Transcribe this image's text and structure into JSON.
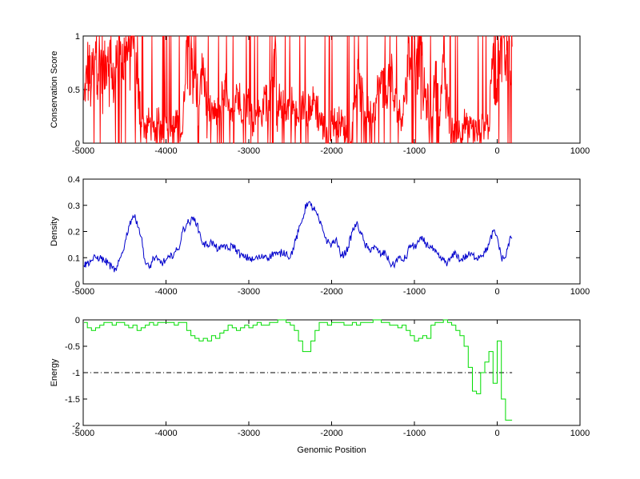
{
  "chart_data": [
    {
      "type": "line",
      "ylabel": "Conservation Score",
      "xlim": [
        -5000,
        1000
      ],
      "ylim": [
        0,
        1
      ],
      "xticks": [
        -5000,
        -4000,
        -3000,
        -2000,
        -1000,
        0,
        1000
      ],
      "xtick_labels": [
        "-5000",
        "-4000",
        "-3000",
        "-2000",
        "-1000",
        "0",
        "1000"
      ],
      "yticks": [
        0,
        0.5,
        1
      ],
      "ytick_labels": [
        "0",
        "0.5",
        "1"
      ],
      "color": "#ff0000",
      "noisy": true,
      "x": [
        -4990,
        -4950,
        -4900,
        -4850,
        -4800,
        -4750,
        -4700,
        -4650,
        -4600,
        -4550,
        -4500,
        -4450,
        -4400,
        -4350,
        -4300,
        -4250,
        -4200,
        -4150,
        -4100,
        -4050,
        -4000,
        -3950,
        -3900,
        -3850,
        -3800,
        -3750,
        -3700,
        -3650,
        -3600,
        -3550,
        -3500,
        -3450,
        -3400,
        -3350,
        -3300,
        -3250,
        -3200,
        -3150,
        -3100,
        -3050,
        -3000,
        -2950,
        -2900,
        -2850,
        -2800,
        -2750,
        -2700,
        -2650,
        -2600,
        -2550,
        -2500,
        -2450,
        -2400,
        -2350,
        -2300,
        -2250,
        -2200,
        -2150,
        -2100,
        -2050,
        -2000,
        -1950,
        -1900,
        -1850,
        -1800,
        -1750,
        -1700,
        -1650,
        -1600,
        -1550,
        -1500,
        -1450,
        -1400,
        -1350,
        -1300,
        -1250,
        -1200,
        -1150,
        -1100,
        -1050,
        -1000,
        -950,
        -900,
        -850,
        -800,
        -750,
        -700,
        -650,
        -600,
        -550,
        -500,
        -450,
        -400,
        -350,
        -300,
        -250,
        -200,
        -150,
        -100,
        -50,
        0,
        50,
        100,
        150,
        180
      ],
      "y": [
        0.4,
        0.7,
        0.55,
        0.95,
        0.8,
        0.6,
        0.9,
        0.5,
        0.7,
        0.95,
        0.75,
        0.85,
        0.95,
        0.55,
        0.2,
        0.15,
        0.2,
        0.1,
        0.2,
        0.15,
        0.2,
        0.1,
        0.15,
        0.2,
        0.1,
        0.95,
        0.9,
        0.6,
        0.35,
        0.8,
        0.3,
        0.3,
        0.25,
        0.35,
        0.5,
        0.3,
        0.2,
        0.55,
        0.3,
        0.4,
        0.35,
        0.2,
        0.3,
        0.25,
        0.45,
        0.3,
        0.8,
        0.4,
        0.35,
        0.3,
        0.4,
        0.3,
        0.2,
        0.35,
        0.3,
        0.35,
        0.4,
        0.25,
        0.15,
        0.0,
        0.2,
        0.2,
        0.2,
        0.15,
        0.05,
        0.2,
        0.55,
        0.45,
        0.3,
        0.3,
        0.2,
        0.45,
        0.55,
        0.35,
        0.7,
        0.4,
        0.3,
        0.25,
        0.55,
        0.8,
        0.95,
        0.9,
        0.5,
        0.4,
        0.25,
        0.6,
        0.25,
        0.75,
        0.35,
        0.1,
        0.15,
        0.1,
        0.2,
        0.1,
        0.15,
        0.1,
        0.1,
        0.2,
        0.15,
        0.9,
        0.6,
        0.95,
        0.75,
        0.95,
        0.9
      ]
    },
    {
      "type": "line",
      "ylabel": "Density",
      "xlim": [
        -5000,
        1000
      ],
      "ylim": [
        0,
        0.4
      ],
      "xticks": [
        -5000,
        -4000,
        -3000,
        -2000,
        -1000,
        0,
        1000
      ],
      "xtick_labels": [
        "-5000",
        "-4000",
        "-3000",
        "-2000",
        "-1000",
        "0",
        "1000"
      ],
      "yticks": [
        0,
        0.1,
        0.2,
        0.3,
        0.4
      ],
      "ytick_labels": [
        "0",
        "0.1",
        "0.2",
        "0.3",
        "0.4"
      ],
      "color": "#0000cc",
      "noisy": true,
      "x": [
        -4990,
        -4950,
        -4900,
        -4850,
        -4800,
        -4750,
        -4700,
        -4650,
        -4600,
        -4550,
        -4500,
        -4450,
        -4400,
        -4350,
        -4300,
        -4250,
        -4200,
        -4150,
        -4100,
        -4050,
        -4000,
        -3950,
        -3900,
        -3850,
        -3800,
        -3750,
        -3700,
        -3650,
        -3600,
        -3550,
        -3500,
        -3450,
        -3400,
        -3350,
        -3300,
        -3250,
        -3200,
        -3150,
        -3100,
        -3050,
        -3000,
        -2950,
        -2900,
        -2850,
        -2800,
        -2750,
        -2700,
        -2650,
        -2600,
        -2550,
        -2500,
        -2450,
        -2400,
        -2350,
        -2300,
        -2250,
        -2200,
        -2150,
        -2100,
        -2050,
        -2000,
        -1950,
        -1900,
        -1850,
        -1800,
        -1750,
        -1700,
        -1650,
        -1600,
        -1550,
        -1500,
        -1450,
        -1400,
        -1350,
        -1300,
        -1250,
        -1200,
        -1150,
        -1100,
        -1050,
        -1000,
        -950,
        -900,
        -850,
        -800,
        -750,
        -700,
        -650,
        -600,
        -550,
        -500,
        -450,
        -400,
        -350,
        -300,
        -250,
        -200,
        -150,
        -100,
        -50,
        0,
        50,
        100,
        150,
        180
      ],
      "y": [
        0.07,
        0.08,
        0.09,
        0.1,
        0.1,
        0.09,
        0.08,
        0.06,
        0.05,
        0.1,
        0.15,
        0.22,
        0.26,
        0.24,
        0.18,
        0.08,
        0.06,
        0.1,
        0.09,
        0.08,
        0.09,
        0.1,
        0.12,
        0.13,
        0.2,
        0.23,
        0.24,
        0.25,
        0.2,
        0.15,
        0.15,
        0.16,
        0.14,
        0.13,
        0.15,
        0.13,
        0.15,
        0.13,
        0.11,
        0.1,
        0.1,
        0.09,
        0.1,
        0.1,
        0.11,
        0.1,
        0.12,
        0.11,
        0.12,
        0.12,
        0.1,
        0.15,
        0.2,
        0.25,
        0.31,
        0.3,
        0.28,
        0.24,
        0.2,
        0.16,
        0.15,
        0.17,
        0.12,
        0.11,
        0.14,
        0.2,
        0.23,
        0.2,
        0.15,
        0.13,
        0.14,
        0.13,
        0.11,
        0.12,
        0.08,
        0.07,
        0.1,
        0.09,
        0.1,
        0.15,
        0.14,
        0.16,
        0.17,
        0.15,
        0.14,
        0.12,
        0.1,
        0.09,
        0.08,
        0.1,
        0.12,
        0.09,
        0.1,
        0.11,
        0.11,
        0.1,
        0.11,
        0.12,
        0.15,
        0.2,
        0.18,
        0.1,
        0.1,
        0.17,
        0.175
      ]
    },
    {
      "type": "line",
      "ylabel": "Energy",
      "xlabel": "Genomic Position",
      "xlim": [
        -5000,
        1000
      ],
      "ylim": [
        -2,
        0
      ],
      "xticks": [
        -5000,
        -4000,
        -3000,
        -2000,
        -1000,
        0,
        1000
      ],
      "xtick_labels": [
        "-5000",
        "-4000",
        "-3000",
        "-2000",
        "-1000",
        "0",
        "1000"
      ],
      "yticks": [
        -2,
        -1.5,
        -1,
        -0.5,
        0
      ],
      "ytick_labels": [
        "-2",
        "-1.5",
        "-1",
        "-0.5",
        "0"
      ],
      "color": "#00dd00",
      "noisy": false,
      "step": true,
      "threshold": {
        "y": -1,
        "x_range": [
          -5000,
          180
        ]
      },
      "x": [
        -4990,
        -4950,
        -4900,
        -4850,
        -4800,
        -4750,
        -4700,
        -4650,
        -4600,
        -4550,
        -4500,
        -4450,
        -4400,
        -4350,
        -4300,
        -4250,
        -4200,
        -4150,
        -4100,
        -4050,
        -4000,
        -3950,
        -3900,
        -3850,
        -3800,
        -3750,
        -3700,
        -3650,
        -3600,
        -3550,
        -3500,
        -3450,
        -3400,
        -3350,
        -3300,
        -3250,
        -3200,
        -3150,
        -3100,
        -3050,
        -3000,
        -2950,
        -2900,
        -2850,
        -2800,
        -2750,
        -2700,
        -2650,
        -2600,
        -2550,
        -2500,
        -2450,
        -2400,
        -2350,
        -2300,
        -2250,
        -2200,
        -2150,
        -2100,
        -2050,
        -2000,
        -1950,
        -1900,
        -1850,
        -1800,
        -1750,
        -1700,
        -1650,
        -1600,
        -1550,
        -1500,
        -1450,
        -1400,
        -1350,
        -1300,
        -1250,
        -1200,
        -1150,
        -1100,
        -1050,
        -1000,
        -950,
        -900,
        -850,
        -800,
        -750,
        -700,
        -650,
        -600,
        -550,
        -500,
        -450,
        -400,
        -350,
        -300,
        -250,
        -200,
        -150,
        -100,
        -50,
        0,
        50,
        100,
        150,
        180
      ],
      "y": [
        -0.05,
        -0.15,
        -0.2,
        -0.15,
        -0.1,
        -0.05,
        -0.05,
        -0.1,
        -0.05,
        -0.05,
        -0.1,
        -0.15,
        -0.1,
        -0.2,
        -0.15,
        -0.1,
        -0.05,
        -0.1,
        -0.05,
        -0.05,
        -0.05,
        -0.05,
        -0.1,
        -0.05,
        -0.05,
        -0.2,
        -0.3,
        -0.35,
        -0.4,
        -0.35,
        -0.4,
        -0.3,
        -0.35,
        -0.25,
        -0.2,
        -0.1,
        -0.15,
        -0.2,
        -0.15,
        -0.1,
        -0.15,
        -0.1,
        -0.05,
        -0.1,
        -0.1,
        -0.05,
        -0.05,
        0,
        0,
        -0.05,
        -0.1,
        -0.2,
        -0.4,
        -0.6,
        -0.6,
        -0.4,
        -0.2,
        -0.05,
        -0.05,
        -0.1,
        -0.05,
        -0.05,
        -0.05,
        -0.1,
        -0.1,
        -0.05,
        -0.1,
        -0.05,
        -0.05,
        -0.05,
        0,
        0,
        -0.05,
        -0.05,
        -0.1,
        -0.1,
        -0.15,
        -0.1,
        -0.2,
        -0.3,
        -0.4,
        -0.35,
        -0.3,
        -0.35,
        -0.1,
        -0.05,
        -0.05,
        0,
        -0.05,
        -0.1,
        -0.2,
        -0.3,
        -0.5,
        -0.9,
        -1.35,
        -1.4,
        -1.0,
        -0.8,
        -0.6,
        -1.2,
        -0.4,
        -1.5,
        -1.9,
        -1.9,
        -1.9
      ]
    }
  ]
}
